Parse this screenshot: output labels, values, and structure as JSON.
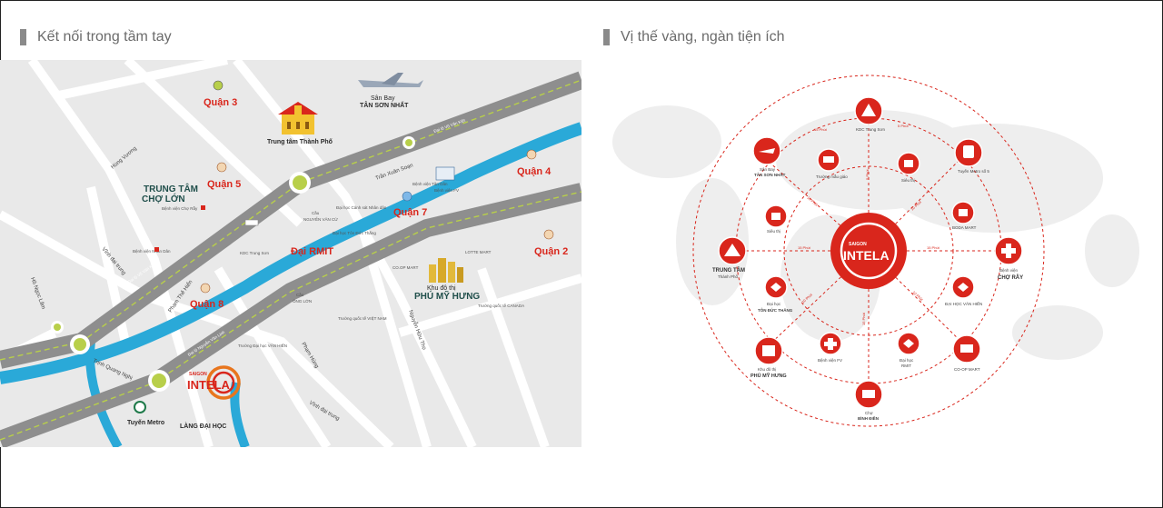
{
  "left_section": {
    "title": "Kết nối trong tầm tay",
    "map": {
      "districts": [
        "Quận 3",
        "Quận 5",
        "Quận 7",
        "Quận 8",
        "Quận 4",
        "Quận 2"
      ],
      "center_label": "Trung tâm Thành Phố",
      "airport": "Sân Bay",
      "airport_name": "TÂN SƠN NHẤT",
      "cho_lon_1": "TRUNG TÂM",
      "cho_lon_2": "CHỢ LỚN",
      "phu_my_hung_1": "Khu đô thị",
      "phu_my_hung_2": "PHÚ MỸ HƯNG",
      "lang_dai_hoc": "LÀNG ĐẠI HỌC",
      "tuyen_metro": "Tuyến Metro",
      "kdc_trung_son": "KDC Trung Sơn",
      "dai_rmit": "Đại RMIT",
      "cau_nguyen_van_cu": "NGUYỄN VĂN CỪ",
      "cau_ong_lon": "ÔNG LỚN",
      "cau": "Cầu",
      "roads": {
        "tran_xuan_soan": "Trần Xuân Soạn",
        "pham_the_hien": "Phạm Thế Hiển",
        "trinh_quang_nghi": "Trịnh Quang Nghị",
        "nguyen_huu_tho": "Nguyễn Hữu Thọ",
        "ha_noi_lam": "Hồ Ngọc Lãm",
        "dai_lo_vo_van_kiet": "Đại lộ Võ Văn Kiệt",
        "dai_lo_nguyen_van_linh": "Đại lộ Nguyễn Văn Linh",
        "dai_lo_vvk_right": "Đại lộ Võ Văn Kiệt",
        "vinh_dai_trung": "Vĩnh đại trung",
        "hung_vuong": "Hùng Vương",
        "pham_hung": "Phạm Hùng",
        "vinh_dai_trung_2": "Vĩnh đại trung"
      },
      "small": {
        "benh_vien_cho_ray": "Bệnh viện Chợ Rẫy",
        "benh_vien_nhan_dan": "Bệnh viện Nhân Dân",
        "benh_vien_tan_dan": "Bệnh viện Tân Dân",
        "benh_vien_fv": "Bệnh viện FV",
        "dai_hoc_canh_sat": "Đại học Cảnh sát Nhân dân",
        "dai_hoc_ton_duc_thang": "Đại học Tôn Đức Thắng",
        "co_op_mart": "CO.OP MART",
        "lotte": "LOTTE MART",
        "truong_viet_nam": "Trường quốc tế VIỆT NAM",
        "truong_canada": "Trường quốc tế CANADA",
        "van_hien": "Trường Đại học VĂN HIẾN"
      },
      "logo_small": "SAIGON",
      "logo_big": "INTELA"
    }
  },
  "right_section": {
    "title": "Vị thế vàng, ngàn tiện ích",
    "center_small": "SAIGON",
    "center_big": "INTELA",
    "nodes": {
      "kdc_trung_son": "KDC Trung Sơn",
      "tan_son_nhat_1": "Sân Bay",
      "tan_son_nhat_2": "TÂN SƠN NHẤT",
      "truong_mau_giao": "Trường mẫu giáo",
      "sieu_thi_top": "Siêu thị",
      "tuyen_metro": "Tuyến Metro số 5",
      "sieu_thi_left": "Siêu thị",
      "boda_mart": "BODA MART",
      "trung_tam_1": "TRUNG TÂM",
      "trung_tam_2": "Thành Phố",
      "cho_ray_1": "Bệnh viện",
      "cho_ray_2": "CHỢ RẪY",
      "dai_hoc_tdt_1": "Đại học",
      "dai_hoc_tdt_2": "TÔN ĐỨC THẮNG",
      "dai_hoc_van_hien": "ĐẠI HỌC VĂN HIẾN",
      "phu_my_hung_1": "Khu đô thị",
      "phu_my_hung_2": "PHÚ MỸ HƯNG",
      "benh_vien_fv": "Bệnh viện FV",
      "dai_hoc_rmit_1": "Đại học",
      "dai_hoc_rmit_2": "RMIT",
      "coop_mart": "CO-OP MART",
      "cho_binh_dien_1": "Chợ",
      "cho_binh_dien_2": "BÌNH ĐIỀN"
    },
    "times": [
      "15 Phút",
      "5 Phút",
      "15 Phút",
      "10 Phút",
      "10 Phút",
      "15 Phút",
      "10 Phút",
      "10 Phút",
      "5 Phút",
      "15 Phút"
    ]
  },
  "colors": {
    "accent_red": "#d9261c",
    "road_grey": "#9a9a9a",
    "river_blue": "#2aa9d8",
    "highway_green": "#b8cf4a",
    "title_grey": "#6b6b6b"
  }
}
